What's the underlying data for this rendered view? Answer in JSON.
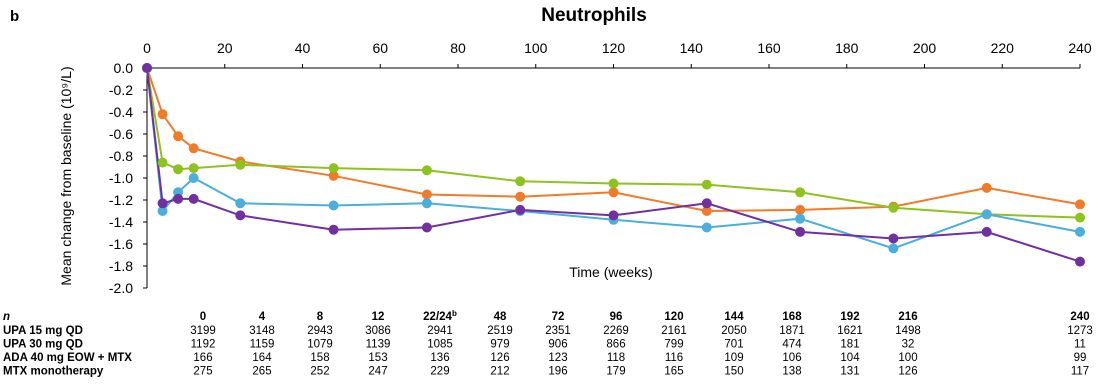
{
  "panel_label": "b",
  "chart_data": {
    "type": "line",
    "title": "Neutrophils",
    "xlabel": "Time (weeks)",
    "ylabel": "Mean change from baseline (10⁹/L)",
    "xlim": [
      0,
      240
    ],
    "ylim": [
      -2.0,
      0.0
    ],
    "x_ticks": [
      "0",
      "20",
      "40",
      "60",
      "80",
      "100",
      "120",
      "140",
      "160",
      "180",
      "200",
      "220",
      "240"
    ],
    "y_ticks": [
      "0.0",
      "-0.2",
      "-0.4",
      "-0.6",
      "-0.8",
      "-1.0",
      "-1.2",
      "-1.4",
      "-1.6",
      "-1.8",
      "-2.0"
    ],
    "grid": false,
    "series": [
      {
        "color": "#F07C2B",
        "points": [
          [
            0,
            0.0
          ],
          [
            4,
            -0.42
          ],
          [
            8,
            -0.62
          ],
          [
            12,
            -0.73
          ],
          [
            24,
            -0.85
          ],
          [
            48,
            -0.98
          ],
          [
            72,
            -1.15
          ],
          [
            96,
            -1.17
          ],
          [
            120,
            -1.13
          ],
          [
            144,
            -1.3
          ],
          [
            168,
            -1.29
          ],
          [
            192,
            -1.26
          ],
          [
            216,
            -1.09
          ],
          [
            240,
            -1.24
          ]
        ]
      },
      {
        "color": "#8DC21F",
        "points": [
          [
            0,
            0.0
          ],
          [
            4,
            -0.86
          ],
          [
            8,
            -0.92
          ],
          [
            12,
            -0.91
          ],
          [
            24,
            -0.88
          ],
          [
            48,
            -0.91
          ],
          [
            72,
            -0.93
          ],
          [
            96,
            -1.03
          ],
          [
            120,
            -1.05
          ],
          [
            144,
            -1.06
          ],
          [
            168,
            -1.13
          ],
          [
            192,
            -1.27
          ],
          [
            216,
            -1.33
          ],
          [
            240,
            -1.36
          ]
        ]
      },
      {
        "color": "#4BAEDB",
        "points": [
          [
            0,
            0.0
          ],
          [
            4,
            -1.3
          ],
          [
            8,
            -1.13
          ],
          [
            12,
            -1.0
          ],
          [
            24,
            -1.23
          ],
          [
            48,
            -1.25
          ],
          [
            72,
            -1.23
          ],
          [
            96,
            -1.3
          ],
          [
            120,
            -1.38
          ],
          [
            144,
            -1.45
          ],
          [
            168,
            -1.37
          ],
          [
            192,
            -1.64
          ],
          [
            216,
            -1.33
          ],
          [
            240,
            -1.49
          ]
        ]
      },
      {
        "color": "#7030A0",
        "points": [
          [
            0,
            0.0
          ],
          [
            4,
            -1.23
          ],
          [
            8,
            -1.19
          ],
          [
            12,
            -1.19
          ],
          [
            24,
            -1.34
          ],
          [
            48,
            -1.47
          ],
          [
            72,
            -1.45
          ],
          [
            96,
            -1.29
          ],
          [
            120,
            -1.34
          ],
          [
            144,
            -1.23
          ],
          [
            168,
            -1.49
          ],
          [
            192,
            -1.55
          ],
          [
            216,
            -1.49
          ],
          [
            240,
            -1.76
          ]
        ]
      }
    ]
  },
  "n_table": {
    "n_label": "n",
    "headers": [
      "0",
      "4",
      "8",
      "12",
      "22/24",
      "48",
      "72",
      "96",
      "120",
      "144",
      "168",
      "192",
      "216",
      "240"
    ],
    "header_sup": "b",
    "rows": [
      {
        "label": "UPA 15 mg QD",
        "values": [
          "3199",
          "3148",
          "2943",
          "3086",
          "2941",
          "2519",
          "2351",
          "2269",
          "2161",
          "2050",
          "1871",
          "1621",
          "1498",
          "1273"
        ]
      },
      {
        "label": "UPA 30 mg QD",
        "values": [
          "1192",
          "1159",
          "1079",
          "1139",
          "1085",
          "979",
          "906",
          "866",
          "799",
          "701",
          "474",
          "181",
          "32",
          "11"
        ]
      },
      {
        "label": "ADA 40 mg EOW + MTX",
        "values": [
          "166",
          "164",
          "158",
          "153",
          "136",
          "126",
          "123",
          "118",
          "116",
          "109",
          "106",
          "104",
          "100",
          "99"
        ]
      },
      {
        "label": "MTX monotherapy",
        "values": [
          "275",
          "265",
          "252",
          "247",
          "229",
          "212",
          "196",
          "179",
          "165",
          "150",
          "138",
          "131",
          "126",
          "117"
        ]
      }
    ]
  }
}
